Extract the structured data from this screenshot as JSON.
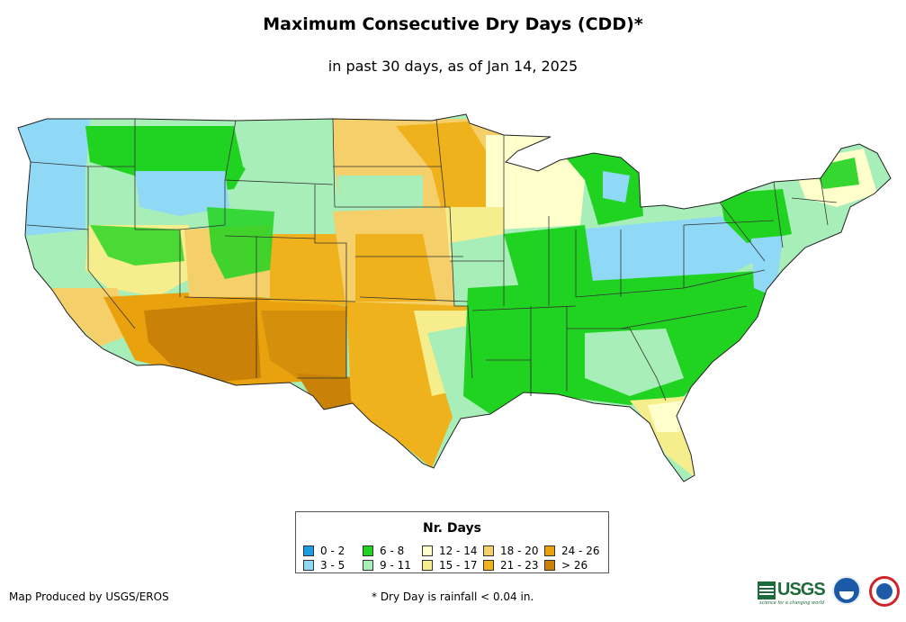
{
  "title": "Maximum Consecutive Dry Days (CDD)*",
  "subtitle": "in past 30 days, as of Jan 14, 2025",
  "legend": {
    "title": "Nr. Days",
    "items": [
      {
        "label": "0 - 2",
        "color": "#1b9de2"
      },
      {
        "label": "3 - 5",
        "color": "#8fd8f6"
      },
      {
        "label": "6 - 8",
        "color": "#21d321"
      },
      {
        "label": "9 - 11",
        "color": "#a8eeb8"
      },
      {
        "label": "12 - 14",
        "color": "#ffffcc"
      },
      {
        "label": "15 - 17",
        "color": "#f6ee8c"
      },
      {
        "label": "18 - 20",
        "color": "#f5cf6a"
      },
      {
        "label": "21 - 23",
        "color": "#efb21c"
      },
      {
        "label": "24 - 26",
        "color": "#e9a20e"
      },
      {
        "label": "> 26",
        "color": "#c98207"
      }
    ]
  },
  "credit": "Map Produced by USGS/EROS",
  "footnote": "* Dry Day is rainfall < 0.04 in.",
  "logos": {
    "usgs_text": "USGS",
    "usgs_tagline": "science for a changing world",
    "icons": [
      "usgs-logo",
      "noaa-logo",
      "nws-logo"
    ]
  },
  "map": {
    "regions": [
      {
        "name": "pacific-northwest",
        "category": "3 - 5"
      },
      {
        "name": "california-coast",
        "category": "9 - 11"
      },
      {
        "name": "great-basin",
        "category": "15 - 17"
      },
      {
        "name": "desert-southwest",
        "category": "> 26"
      },
      {
        "name": "four-corners",
        "category": "24 - 26"
      },
      {
        "name": "rocky-mountains",
        "category": "6 - 8"
      },
      {
        "name": "northern-plains",
        "category": "18 - 20"
      },
      {
        "name": "central-plains",
        "category": "21 - 23"
      },
      {
        "name": "texas",
        "category": "21 - 23"
      },
      {
        "name": "upper-midwest",
        "category": "12 - 14"
      },
      {
        "name": "ohio-valley",
        "category": "3 - 5"
      },
      {
        "name": "southeast",
        "category": "6 - 8"
      },
      {
        "name": "florida",
        "category": "15 - 17"
      },
      {
        "name": "northeast",
        "category": "9 - 11"
      }
    ]
  }
}
